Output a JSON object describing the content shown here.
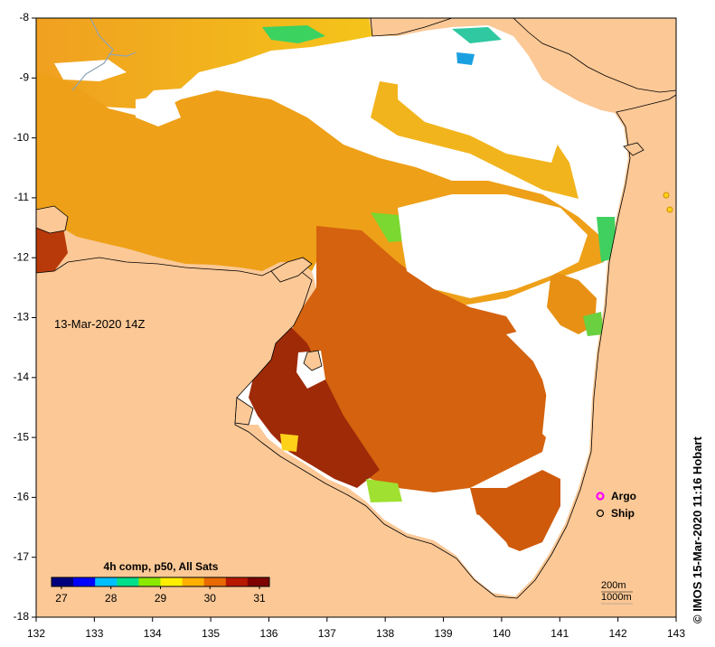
{
  "map": {
    "timestamp": "13-Mar-2020 14Z",
    "x_ticks": [
      "132",
      "133",
      "134",
      "135",
      "136",
      "137",
      "138",
      "139",
      "140",
      "141",
      "142",
      "143"
    ],
    "y_ticks": [
      "-8",
      "-9",
      "-10",
      "-11",
      "-12",
      "-13",
      "-14",
      "-15",
      "-16",
      "-17",
      "-18"
    ],
    "lon_range": [
      132,
      143
    ],
    "lat_range": [
      -18,
      -8
    ],
    "colors": {
      "land": "#fbc896",
      "nodata": "#ffffff",
      "coast": "#000000"
    }
  },
  "colorbar": {
    "title": "4h comp, p50, All Sats",
    "ticks": [
      "27",
      "28",
      "29",
      "30",
      "31"
    ],
    "range": [
      26.8,
      31.2
    ],
    "colors": [
      "#00007f",
      "#0000ff",
      "#00bfff",
      "#00e08a",
      "#8be800",
      "#ffee00",
      "#ffb000",
      "#e86a00",
      "#b81800",
      "#7f0000"
    ]
  },
  "legend": {
    "items": [
      {
        "label": "Argo",
        "color": "#ff00ff"
      },
      {
        "label": "Ship",
        "color": "#000000"
      }
    ]
  },
  "depth_labels": [
    "200m",
    "1000m"
  ],
  "credit": "© IMOS 15-Mar-2020 11:16 Hobart"
}
